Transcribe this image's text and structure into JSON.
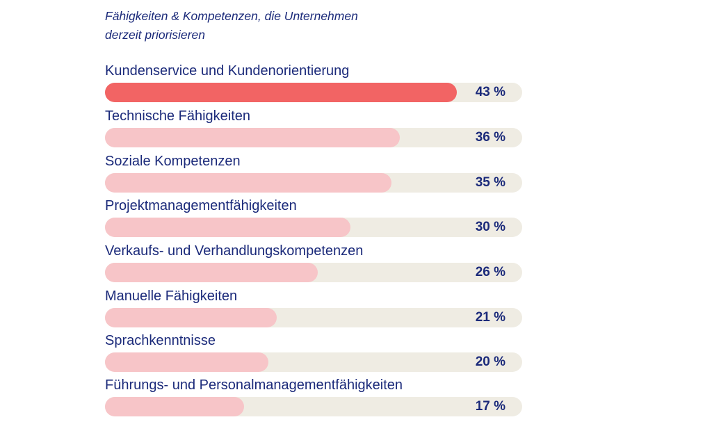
{
  "chart_data": {
    "type": "bar",
    "orientation": "horizontal",
    "title": "Fähigkeiten & Kompetenzen, die Unternehmen derzeit priorisieren",
    "title_lines": [
      "Fähigkeiten & Kompetenzen, die Unternehmen",
      "derzeit priorisieren"
    ],
    "categories": [
      "Kundenservice und Kundenorientierung",
      "Technische Fähigkeiten",
      "Soziale Kompetenzen",
      "Projektmanagementfähigkeiten",
      "Verkaufs- und Verhandlungskompetenzen",
      "Manuelle Fähigkeiten",
      "Sprachkenntnisse",
      "Führungs- und Personalmanagementfähigkeiten"
    ],
    "values": [
      43,
      36,
      35,
      30,
      26,
      21,
      20,
      17
    ],
    "value_labels": [
      "43 %",
      "36 %",
      "35 %",
      "30 %",
      "26 %",
      "21 %",
      "20 %",
      "17 %"
    ],
    "unit": "%",
    "xlim": [
      0,
      51
    ],
    "highlight_index": 0,
    "colors": {
      "highlight": "#f26464",
      "bar": "#f7c5c8",
      "track": "#efece3",
      "text": "#1b2a7a"
    },
    "grid": false,
    "legend": "none"
  }
}
